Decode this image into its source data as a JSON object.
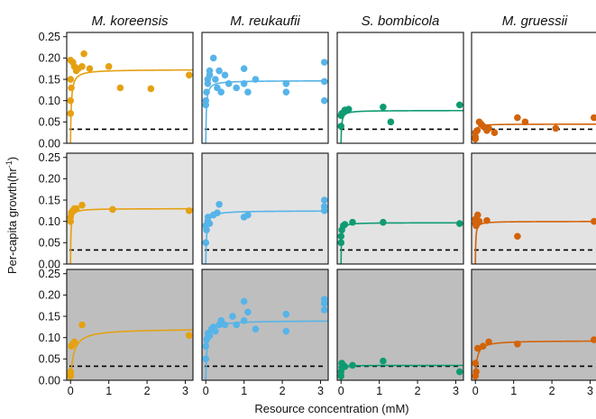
{
  "figure": {
    "ylabel": "Per-capita growth(hr",
    "ylabel_sup": "-1",
    "ylabel_close": ")",
    "xlabel": "Resource concentration (mM)"
  },
  "colors": {
    "M. koreensis": "#E5A111",
    "M. reukaufii": "#56B4E9",
    "S. bombicola": "#0E9B72",
    "M. gruessii": "#D2630A",
    "row_backgrounds": [
      "#FFFFFF",
      "#E3E3E3",
      "#BEBEBE"
    ],
    "panel_border": "#111111",
    "threshold_line": "#000000"
  },
  "chart_data": {
    "type": "scatter",
    "layout": "facet grid 3 rows x 4 columns",
    "columns": [
      "M. koreensis",
      "M. reukaufii",
      "S. bombicola",
      "M. gruessii"
    ],
    "xlabel": "Resource concentration (mM)",
    "ylabel": "Per-capita growth(hr^-1)",
    "xlim": [
      -0.1,
      3.2
    ],
    "ylim": [
      0,
      0.26
    ],
    "xticks": [
      0,
      1,
      2,
      3
    ],
    "yticks": [
      0.0,
      0.05,
      0.1,
      0.15,
      0.2,
      0.25
    ],
    "ytick_labels": [
      "0.00",
      "0.05",
      "0.10",
      "0.15",
      "0.20",
      "0.25"
    ],
    "threshold": 0.033,
    "fit": "saturating (Monod-type) curve per panel",
    "panels": [
      {
        "row": 0,
        "col": 0,
        "fit_max": 0.173,
        "fit_k": 0.02,
        "points": [
          [
            0.0,
            0.07
          ],
          [
            0.0,
            0.1
          ],
          [
            0.02,
            0.13
          ],
          [
            0.0,
            0.15
          ],
          [
            0.0,
            0.195
          ],
          [
            0.06,
            0.19
          ],
          [
            0.1,
            0.18
          ],
          [
            0.15,
            0.17
          ],
          [
            0.2,
            0.175
          ],
          [
            0.3,
            0.18
          ],
          [
            0.35,
            0.21
          ],
          [
            0.5,
            0.175
          ],
          [
            1.0,
            0.18
          ],
          [
            1.3,
            0.13
          ],
          [
            2.1,
            0.128
          ],
          [
            3.1,
            0.16
          ]
        ]
      },
      {
        "row": 0,
        "col": 1,
        "fit_max": 0.147,
        "fit_k": 0.015,
        "points": [
          [
            0.0,
            0.09
          ],
          [
            0.0,
            0.1
          ],
          [
            0.02,
            0.12
          ],
          [
            0.05,
            0.14
          ],
          [
            0.05,
            0.15
          ],
          [
            0.1,
            0.16
          ],
          [
            0.1,
            0.17
          ],
          [
            0.2,
            0.2
          ],
          [
            0.25,
            0.15
          ],
          [
            0.3,
            0.13
          ],
          [
            0.35,
            0.17
          ],
          [
            0.4,
            0.12
          ],
          [
            0.5,
            0.16
          ],
          [
            0.6,
            0.14
          ],
          [
            0.8,
            0.13
          ],
          [
            1.0,
            0.175
          ],
          [
            1.0,
            0.14
          ],
          [
            1.1,
            0.12
          ],
          [
            1.3,
            0.15
          ],
          [
            2.1,
            0.14
          ],
          [
            2.1,
            0.12
          ],
          [
            3.1,
            0.19
          ],
          [
            3.1,
            0.145
          ],
          [
            3.1,
            0.1
          ]
        ]
      },
      {
        "row": 0,
        "col": 2,
        "fit_max": 0.077,
        "fit_k": 0.015,
        "points": [
          [
            0.0,
            0.04
          ],
          [
            0.0,
            0.065
          ],
          [
            0.02,
            0.07
          ],
          [
            0.06,
            0.072
          ],
          [
            0.1,
            0.078
          ],
          [
            0.2,
            0.08
          ],
          [
            1.1,
            0.085
          ],
          [
            1.3,
            0.05
          ],
          [
            3.1,
            0.09
          ]
        ]
      },
      {
        "row": 0,
        "col": 3,
        "fit_max": 0.045,
        "fit_k": 0.015,
        "points": [
          [
            0.0,
            0.01
          ],
          [
            0.0,
            0.015
          ],
          [
            0.0,
            0.025
          ],
          [
            0.05,
            0.03
          ],
          [
            0.1,
            0.05
          ],
          [
            0.15,
            0.045
          ],
          [
            0.2,
            0.04
          ],
          [
            0.3,
            0.03
          ],
          [
            0.35,
            0.035
          ],
          [
            0.5,
            0.025
          ],
          [
            1.1,
            0.06
          ],
          [
            1.3,
            0.05
          ],
          [
            2.1,
            0.035
          ],
          [
            3.1,
            0.06
          ]
        ]
      },
      {
        "row": 1,
        "col": 0,
        "fit_max": 0.13,
        "fit_k": 0.01,
        "points": [
          [
            0.0,
            0.11
          ],
          [
            0.0,
            0.1
          ],
          [
            0.02,
            0.12
          ],
          [
            0.06,
            0.125
          ],
          [
            0.1,
            0.13
          ],
          [
            0.15,
            0.13
          ],
          [
            0.3,
            0.138
          ],
          [
            1.1,
            0.128
          ],
          [
            3.1,
            0.125
          ]
        ]
      },
      {
        "row": 1,
        "col": 1,
        "fit_max": 0.125,
        "fit_k": 0.02,
        "points": [
          [
            0.0,
            0.05
          ],
          [
            0.0,
            0.09
          ],
          [
            0.02,
            0.08
          ],
          [
            0.05,
            0.1
          ],
          [
            0.06,
            0.11
          ],
          [
            0.1,
            0.095
          ],
          [
            0.2,
            0.115
          ],
          [
            0.3,
            0.12
          ],
          [
            0.35,
            0.14
          ],
          [
            1.0,
            0.11
          ],
          [
            1.1,
            0.115
          ],
          [
            3.1,
            0.15
          ],
          [
            3.1,
            0.135
          ],
          [
            3.1,
            0.125
          ]
        ]
      },
      {
        "row": 1,
        "col": 2,
        "fit_max": 0.097,
        "fit_k": 0.01,
        "points": [
          [
            0.0,
            0.05
          ],
          [
            0.0,
            0.065
          ],
          [
            0.02,
            0.08
          ],
          [
            0.06,
            0.09
          ],
          [
            0.1,
            0.093
          ],
          [
            0.3,
            0.098
          ],
          [
            1.1,
            0.098
          ],
          [
            3.1,
            0.095
          ]
        ]
      },
      {
        "row": 1,
        "col": 3,
        "fit_max": 0.1,
        "fit_k": 0.01,
        "points": [
          [
            0.0,
            0.095
          ],
          [
            0.0,
            0.105
          ],
          [
            0.02,
            0.09
          ],
          [
            0.06,
            0.115
          ],
          [
            0.1,
            0.1
          ],
          [
            0.3,
            0.102
          ],
          [
            1.1,
            0.065
          ],
          [
            3.1,
            0.1
          ]
        ]
      },
      {
        "row": 2,
        "col": 0,
        "fit_max": 0.121,
        "fit_k": 0.08,
        "points": [
          [
            0.0,
            0.01
          ],
          [
            0.0,
            0.02
          ],
          [
            0.0,
            0.015
          ],
          [
            0.02,
            0.08
          ],
          [
            0.06,
            0.085
          ],
          [
            0.1,
            0.09
          ],
          [
            0.3,
            0.13
          ],
          [
            3.1,
            0.105
          ]
        ]
      },
      {
        "row": 2,
        "col": 1,
        "fit_max": 0.14,
        "fit_k": 0.03,
        "points": [
          [
            0.0,
            0.05
          ],
          [
            0.0,
            0.08
          ],
          [
            0.02,
            0.095
          ],
          [
            0.05,
            0.1
          ],
          [
            0.06,
            0.11
          ],
          [
            0.1,
            0.105
          ],
          [
            0.15,
            0.12
          ],
          [
            0.2,
            0.125
          ],
          [
            0.25,
            0.115
          ],
          [
            0.35,
            0.13
          ],
          [
            0.4,
            0.14
          ],
          [
            0.5,
            0.13
          ],
          [
            0.7,
            0.15
          ],
          [
            0.8,
            0.13
          ],
          [
            1.0,
            0.185
          ],
          [
            1.0,
            0.14
          ],
          [
            1.1,
            0.16
          ],
          [
            1.3,
            0.12
          ],
          [
            2.1,
            0.155
          ],
          [
            2.1,
            0.115
          ],
          [
            3.1,
            0.19
          ],
          [
            3.1,
            0.18
          ],
          [
            3.1,
            0.165
          ]
        ]
      },
      {
        "row": 2,
        "col": 2,
        "fit_max": 0.035,
        "fit_k": 0.01,
        "points": [
          [
            0.0,
            0.01
          ],
          [
            0.0,
            0.02
          ],
          [
            0.02,
            0.03
          ],
          [
            0.02,
            0.04
          ],
          [
            0.06,
            0.035
          ],
          [
            0.1,
            0.032
          ],
          [
            0.3,
            0.035
          ],
          [
            1.1,
            0.045
          ],
          [
            3.1,
            0.02
          ]
        ]
      },
      {
        "row": 2,
        "col": 3,
        "fit_max": 0.093,
        "fit_k": 0.04,
        "points": [
          [
            0.0,
            0.01
          ],
          [
            0.0,
            0.04
          ],
          [
            0.02,
            0.02
          ],
          [
            0.06,
            0.075
          ],
          [
            0.2,
            0.08
          ],
          [
            0.35,
            0.09
          ],
          [
            1.1,
            0.085
          ],
          [
            3.1,
            0.095
          ]
        ]
      }
    ]
  }
}
